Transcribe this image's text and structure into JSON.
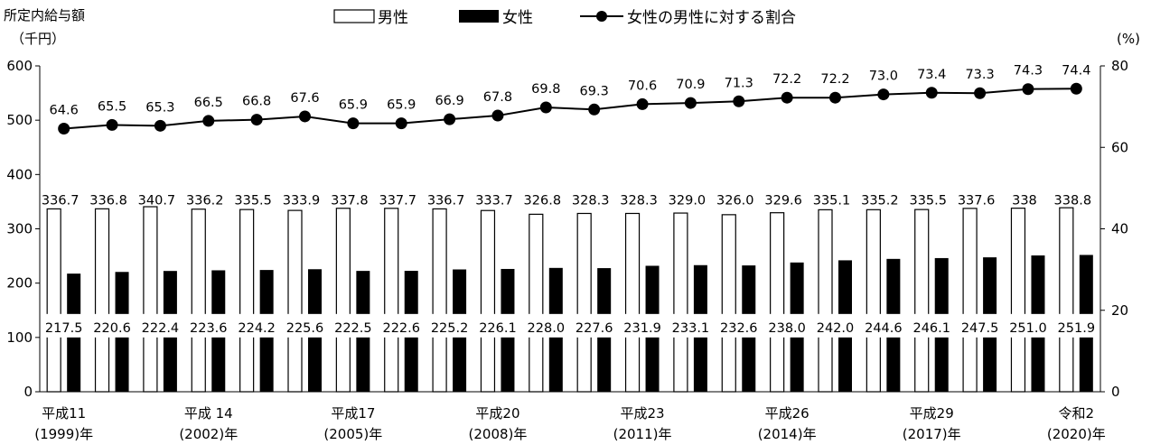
{
  "chart_data": {
    "type": "bar",
    "combo": "bar+line",
    "ylabel_left": [
      "所定内給与額",
      "（千円）"
    ],
    "ylabel_right": "(%)",
    "ylim_left": [
      0,
      600
    ],
    "yticks_left": [
      "0",
      "100",
      "200",
      "300",
      "400",
      "500",
      "600"
    ],
    "ylim_right": [
      0,
      80
    ],
    "yticks_right": [
      "0",
      "20",
      "40",
      "60",
      "80"
    ],
    "x_labels": [
      {
        "index": 0,
        "line1": "平成11",
        "line2": "(1999)年"
      },
      {
        "index": 3,
        "line1": "平成 14",
        "line2": "(2002)年"
      },
      {
        "index": 6,
        "line1": "平成17",
        "line2": "(2005)年"
      },
      {
        "index": 9,
        "line1": "平成20",
        "line2": "(2008)年"
      },
      {
        "index": 12,
        "line1": "平成23",
        "line2": "(2011)年"
      },
      {
        "index": 15,
        "line1": "平成26",
        "line2": "(2014)年"
      },
      {
        "index": 18,
        "line1": "平成29",
        "line2": "(2017)年"
      },
      {
        "index": 21,
        "line1": "令和2",
        "line2": "(2020)年"
      }
    ],
    "legend": [
      "男性",
      "女性",
      "女性の男性に対する割合"
    ],
    "series": [
      {
        "name": "男性",
        "axis": "left",
        "style": "hollow-bar",
        "values": [
          336.7,
          336.8,
          340.7,
          336.2,
          335.5,
          333.9,
          337.8,
          337.7,
          336.7,
          333.7,
          326.8,
          328.3,
          328.3,
          329.0,
          326.0,
          329.6,
          335.1,
          335.2,
          335.5,
          337.6,
          338,
          338.8
        ],
        "labels": [
          "336.7",
          "336.8",
          "340.7",
          "336.2",
          "335.5",
          "333.9",
          "337.8",
          "337.7",
          "336.7",
          "333.7",
          "326.8",
          "328.3",
          "328.3",
          "329.0",
          "326.0",
          "329.6",
          "335.1",
          "335.2",
          "335.5",
          "337.6",
          "338",
          "338.8"
        ]
      },
      {
        "name": "女性",
        "axis": "left",
        "style": "solid-bar",
        "values": [
          217.5,
          220.6,
          222.4,
          223.6,
          224.2,
          225.6,
          222.5,
          222.6,
          225.2,
          226.1,
          228.0,
          227.6,
          231.9,
          233.1,
          232.6,
          238.0,
          242.0,
          244.6,
          246.1,
          247.5,
          251.0,
          251.9
        ],
        "labels": [
          "217.5",
          "220.6",
          "222.4",
          "223.6",
          "224.2",
          "225.6",
          "222.5",
          "222.6",
          "225.2",
          "226.1",
          "228.0",
          "227.6",
          "231.9",
          "233.1",
          "232.6",
          "238.0",
          "242.0",
          "244.6",
          "246.1",
          "247.5",
          "251.0",
          "251.9"
        ]
      },
      {
        "name": "女性の男性に対する割合",
        "axis": "right",
        "style": "line-marker",
        "values": [
          64.6,
          65.5,
          65.3,
          66.5,
          66.8,
          67.6,
          65.9,
          65.9,
          66.9,
          67.8,
          69.8,
          69.3,
          70.6,
          70.9,
          71.3,
          72.2,
          72.2,
          73.0,
          73.4,
          73.3,
          74.3,
          74.4
        ],
        "labels": [
          "64.6",
          "65.5",
          "65.3",
          "66.5",
          "66.8",
          "67.6",
          "65.9",
          "65.9",
          "66.9",
          "67.8",
          "69.8",
          "69.3",
          "70.6",
          "70.9",
          "71.3",
          "72.2",
          "72.2",
          "73.0",
          "73.4",
          "73.3",
          "74.3",
          "74.4"
        ]
      }
    ],
    "colors": {
      "male_fill": "#ffffff",
      "female_fill": "#000000",
      "line": "#000000"
    },
    "grid": false,
    "legend_position": "top"
  }
}
